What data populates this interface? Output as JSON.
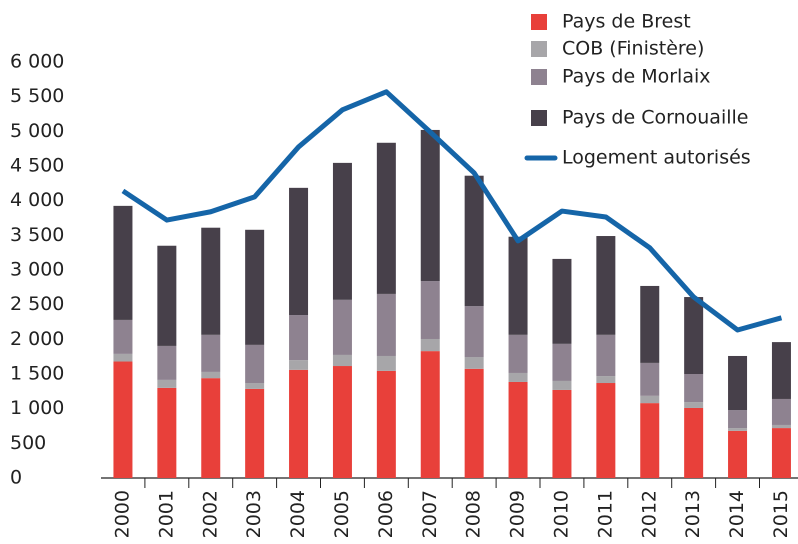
{
  "chart_data": {
    "type": "bar",
    "stacked": true,
    "categories": [
      "2000",
      "2001",
      "2002",
      "2003",
      "2004",
      "2005",
      "2006",
      "2007",
      "2008",
      "2009",
      "2010",
      "2011",
      "2012",
      "2013",
      "2014",
      "2015"
    ],
    "series": [
      {
        "name": "Pays de Brest",
        "color": "#e8403a",
        "values": [
          1680,
          1300,
          1440,
          1285,
          1560,
          1615,
          1545,
          1830,
          1575,
          1385,
          1270,
          1370,
          1080,
          1010,
          680,
          720
        ]
      },
      {
        "name": "COB (Finistère)",
        "color": "#a7a6a9",
        "values": [
          110,
          115,
          90,
          85,
          140,
          160,
          215,
          175,
          170,
          130,
          130,
          100,
          105,
          85,
          40,
          45
        ]
      },
      {
        "name": "Pays de Morlaix",
        "color": "#8e8290",
        "values": [
          490,
          490,
          535,
          550,
          650,
          795,
          895,
          835,
          735,
          550,
          535,
          595,
          475,
          405,
          260,
          375
        ]
      },
      {
        "name": "Pays de Cornouaille",
        "color": "#47404a",
        "values": [
          1645,
          1445,
          1545,
          1660,
          1835,
          1975,
          2180,
          2180,
          1880,
          1415,
          1225,
          1425,
          1110,
          1110,
          780,
          820
        ]
      },
      {
        "name": "Logement autorisés",
        "type": "line",
        "color": "#1565a8",
        "values": [
          4140,
          3720,
          3840,
          4055,
          4775,
          5310,
          5570,
          4990,
          4400,
          3420,
          3850,
          3765,
          3320,
          2610,
          2135,
          2310
        ]
      }
    ],
    "ylim": [
      0,
      6000
    ],
    "yticks": [
      0,
      500,
      {
        "value": 1000,
        "label": "1 000"
      },
      {
        "value": 1500,
        "label": "1 500"
      },
      {
        "value": 2000,
        "label": "2 000"
      },
      {
        "value": 2500,
        "label": "2 500"
      },
      {
        "value": 3000,
        "label": "3 000"
      },
      {
        "value": 3500,
        "label": "3 500"
      },
      {
        "value": 4000,
        "label": "4 000"
      },
      {
        "value": 4500,
        "label": "4 500"
      },
      {
        "value": 5000,
        "label": "5 000"
      },
      {
        "value": 5500,
        "label": "5 500"
      },
      {
        "value": 6000,
        "label": "6 000"
      }
    ],
    "legend": "top-right"
  }
}
